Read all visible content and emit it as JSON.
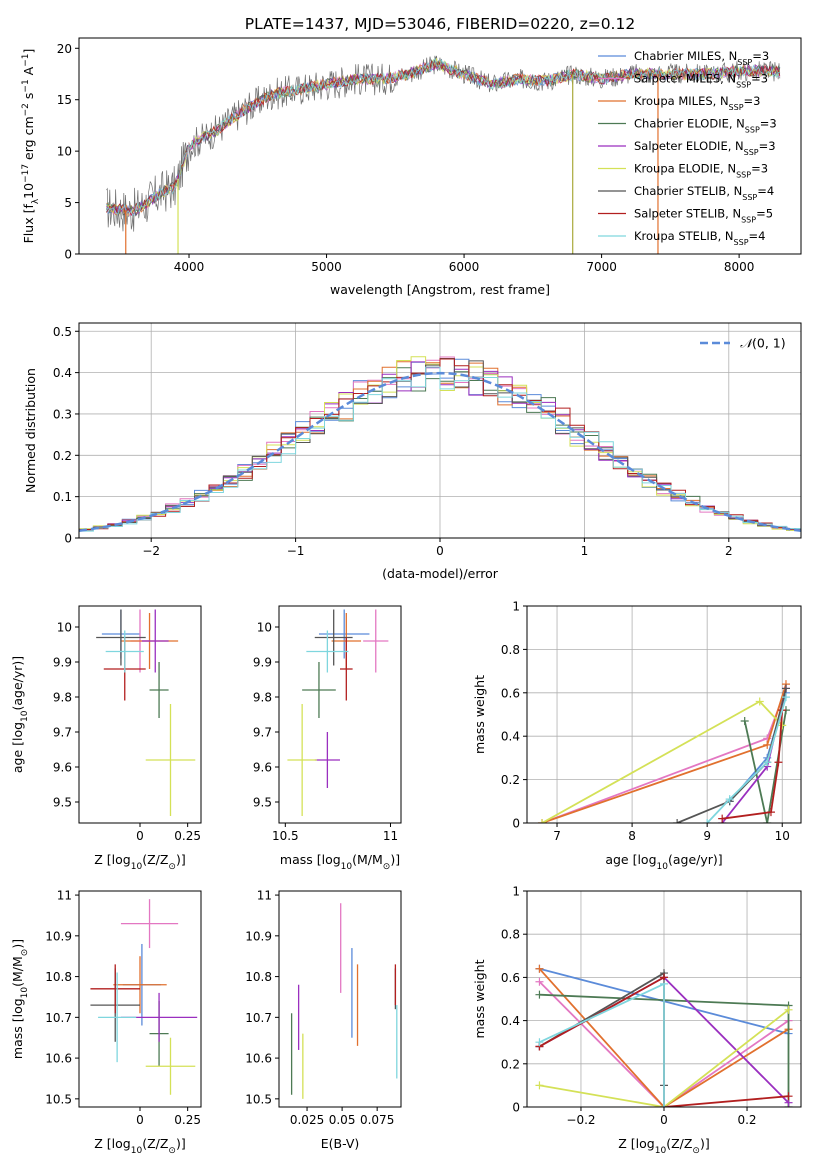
{
  "figure": {
    "title": "PLATE=1437, MJD=53046, FIBERID=0220, z=0.12",
    "model_colors": [
      "#5b8bd9",
      "#e377c2",
      "#e1702e",
      "#4d7a54",
      "#9a2fbf",
      "#d4e157",
      "#555555",
      "#b21f1f",
      "#7fd6de"
    ]
  },
  "chart_data": [
    {
      "id": "spectrum",
      "type": "line",
      "title": "PLATE=1437, MJD=53046, FIBERID=0220, z=0.12",
      "xlabel": "wavelength [Angstrom, rest frame]",
      "ylabel": "Flux [f_λ 10^-17 erg cm^-2 s^-1 A^-1]",
      "xlim": [
        3200,
        8450
      ],
      "ylim": [
        0,
        21
      ],
      "xticks": [
        4000,
        5000,
        6000,
        7000,
        8000
      ],
      "yticks": [
        0,
        5,
        10,
        15,
        20
      ],
      "legend_position": "top-right",
      "legend": [
        {
          "label": "Chabrier MILES, N",
          "sub": "SSP",
          "eq": "=3",
          "color": "#5b8bd9"
        },
        {
          "label": "Salpeter MILES, N",
          "sub": "SSP",
          "eq": "=3",
          "color": "#e377c2"
        },
        {
          "label": "Kroupa MILES, N",
          "sub": "SSP",
          "eq": "=3",
          "color": "#e1702e"
        },
        {
          "label": "Chabrier ELODIE, N",
          "sub": "SSP",
          "eq": "=3",
          "color": "#4d7a54"
        },
        {
          "label": "Salpeter ELODIE, N",
          "sub": "SSP",
          "eq": "=3",
          "color": "#9a2fbf"
        },
        {
          "label": "Kroupa ELODIE, N",
          "sub": "SSP",
          "eq": "=3",
          "color": "#d4e157"
        },
        {
          "label": "Chabrier STELIB, N",
          "sub": "SSP",
          "eq": "=4",
          "color": "#555555"
        },
        {
          "label": "Salpeter STELIB, N",
          "sub": "SSP",
          "eq": "=5",
          "color": "#b21f1f"
        },
        {
          "label": "Kroupa STELIB, N",
          "sub": "SSP",
          "eq": "=4",
          "color": "#7fd6de"
        }
      ],
      "continuum_x": [
        3400,
        3500,
        3600,
        3700,
        3800,
        3900,
        4000,
        4200,
        4400,
        4600,
        4800,
        5000,
        5200,
        5400,
        5600,
        5800,
        6000,
        6200,
        6400,
        6600,
        6800,
        7000,
        7200,
        7400,
        7600,
        7800,
        8000,
        8200,
        8300
      ],
      "continuum_y": [
        4.5,
        4.3,
        4.2,
        5.0,
        6.0,
        6.5,
        10.5,
        12.0,
        14.0,
        15.5,
        16.0,
        16.5,
        17.0,
        17.0,
        17.5,
        18.5,
        17.5,
        16.5,
        17.0,
        16.8,
        17.5,
        17.0,
        17.5,
        17.5,
        17.5,
        17.5,
        17.8,
        17.8,
        17.7
      ]
    },
    {
      "id": "residuals",
      "type": "line",
      "xlabel": "(data-model)/error",
      "ylabel": "Normed distribution",
      "xlim": [
        -2.5,
        2.5
      ],
      "ylim": [
        0,
        0.52
      ],
      "xticks": [
        -2,
        -1,
        0,
        1,
        2
      ],
      "yticks": [
        0.0,
        0.1,
        0.2,
        0.3,
        0.4,
        0.5
      ],
      "grid": true,
      "legend_position": "top-right",
      "series": [
        {
          "name": "N(0,1)",
          "type": "gaussian",
          "mean": 0,
          "sigma": 1,
          "color": "#5b8bd9"
        }
      ]
    },
    {
      "id": "age-vs-Z",
      "type": "scatter",
      "xlabel": "Z [log10(Z/Z_sun)]",
      "ylabel": "age [log10(age/yr)]",
      "xlim": [
        -0.32,
        0.32
      ],
      "ylim": [
        9.44,
        10.06
      ],
      "xticks": [
        0.0,
        0.25
      ],
      "yticks": [
        9.5,
        9.6,
        9.7,
        9.8,
        9.9,
        10.0
      ],
      "points": [
        {
          "x": -0.1,
          "y": 9.98,
          "xerr": 0.1,
          "yerr": 0.07
        },
        {
          "x": 0.0,
          "y": 9.96,
          "xerr": 0.05,
          "yerr": 0.09
        },
        {
          "x": 0.05,
          "y": 9.96,
          "xerr": 0.15,
          "yerr": 0.08
        },
        {
          "x": 0.1,
          "y": 9.82,
          "xerr": 0.05,
          "yerr": 0.08
        },
        {
          "x": 0.08,
          "y": 9.96,
          "xerr": 0.07,
          "yerr": 0.09
        },
        {
          "x": 0.16,
          "y": 9.62,
          "xerr": 0.13,
          "yerr": 0.16
        },
        {
          "x": -0.1,
          "y": 9.97,
          "xerr": 0.13,
          "yerr": 0.08
        },
        {
          "x": -0.08,
          "y": 9.88,
          "xerr": 0.11,
          "yerr": 0.09
        },
        {
          "x": -0.08,
          "y": 9.93,
          "xerr": 0.1,
          "yerr": 0.06
        }
      ]
    },
    {
      "id": "age-vs-mass",
      "type": "scatter",
      "xlabel": "mass [log10(M/M_sun)]",
      "ylabel": "",
      "xlim": [
        10.47,
        11.05
      ],
      "ylim": [
        9.44,
        10.06
      ],
      "xticks": [
        10.5,
        11.0
      ],
      "yticks": [
        9.5,
        9.6,
        9.7,
        9.8,
        9.9,
        10.0
      ],
      "points": [
        {
          "x": 10.78,
          "y": 9.98,
          "xerr": 0.12,
          "yerr": 0.07
        },
        {
          "x": 10.93,
          "y": 9.96,
          "xerr": 0.06,
          "yerr": 0.09
        },
        {
          "x": 10.79,
          "y": 9.96,
          "xerr": 0.07,
          "yerr": 0.08
        },
        {
          "x": 10.66,
          "y": 9.82,
          "xerr": 0.08,
          "yerr": 0.08
        },
        {
          "x": 10.7,
          "y": 9.62,
          "xerr": 0.06,
          "yerr": 0.08
        },
        {
          "x": 10.58,
          "y": 9.62,
          "xerr": 0.07,
          "yerr": 0.16
        },
        {
          "x": 10.73,
          "y": 9.97,
          "xerr": 0.09,
          "yerr": 0.08
        },
        {
          "x": 10.79,
          "y": 9.88,
          "xerr": 0.03,
          "yerr": 0.09
        },
        {
          "x": 10.7,
          "y": 9.93,
          "xerr": 0.1,
          "yerr": 0.06
        }
      ]
    },
    {
      "id": "weight-vs-age",
      "type": "line",
      "xlabel": "age [log10(age/yr)]",
      "ylabel": "mass weight",
      "xlim": [
        6.6,
        10.25
      ],
      "ylim": [
        0,
        1.0
      ],
      "xticks": [
        7,
        8,
        9,
        10
      ],
      "yticks": [
        0.0,
        0.2,
        0.4,
        0.6,
        0.8,
        1.0
      ],
      "grid": true,
      "series": [
        {
          "x": [
            9.3,
            9.8,
            10.05
          ],
          "y": [
            0.1,
            0.3,
            0.6
          ]
        },
        {
          "x": [
            6.8,
            9.8,
            10.05
          ],
          "y": [
            0.0,
            0.39,
            0.62
          ]
        },
        {
          "x": [
            6.8,
            9.8,
            10.05
          ],
          "y": [
            0.0,
            0.36,
            0.64
          ]
        },
        {
          "x": [
            9.5,
            9.8,
            10.05
          ],
          "y": [
            0.47,
            0.0,
            0.52
          ]
        },
        {
          "x": [
            9.2,
            9.8,
            10.05
          ],
          "y": [
            0.0,
            0.26,
            0.62
          ]
        },
        {
          "x": [
            6.8,
            9.7,
            10.0
          ],
          "y": [
            0.0,
            0.56,
            0.45
          ]
        },
        {
          "x": [
            8.6,
            9.3,
            9.8,
            10.05
          ],
          "y": [
            0.0,
            0.1,
            0.28,
            0.62
          ]
        },
        {
          "x": [
            9.2,
            9.85,
            9.95,
            10.0
          ],
          "y": [
            0.02,
            0.05,
            0.28,
            0.52
          ]
        },
        {
          "x": [
            9.0,
            9.3,
            9.8,
            10.05
          ],
          "y": [
            0.0,
            0.11,
            0.28,
            0.58
          ]
        }
      ]
    },
    {
      "id": "mass-vs-Z",
      "type": "scatter",
      "xlabel": "Z [log10(Z/Z_sun)]",
      "ylabel": "mass [log10(M/M_sun)]",
      "xlim": [
        -0.32,
        0.32
      ],
      "ylim": [
        10.48,
        11.01
      ],
      "xticks": [
        0.0,
        0.25
      ],
      "yticks": [
        10.5,
        10.6,
        10.7,
        10.8,
        10.9,
        11.0
      ],
      "points": [
        {
          "x": 0.01,
          "y": 10.78,
          "xerr": 0.1,
          "yerr": 0.1
        },
        {
          "x": 0.05,
          "y": 10.93,
          "xerr": 0.15,
          "yerr": 0.06
        },
        {
          "x": 0.0,
          "y": 10.78,
          "xerr": 0.14,
          "yerr": 0.07
        },
        {
          "x": 0.1,
          "y": 10.66,
          "xerr": 0.05,
          "yerr": 0.08
        },
        {
          "x": 0.1,
          "y": 10.7,
          "xerr": 0.2,
          "yerr": 0.06
        },
        {
          "x": 0.16,
          "y": 10.58,
          "xerr": 0.13,
          "yerr": 0.07
        },
        {
          "x": -0.13,
          "y": 10.73,
          "xerr": 0.13,
          "yerr": 0.09
        },
        {
          "x": -0.13,
          "y": 10.77,
          "xerr": 0.13,
          "yerr": 0.06
        },
        {
          "x": -0.12,
          "y": 10.7,
          "xerr": 0.1,
          "yerr": 0.11
        }
      ]
    },
    {
      "id": "mass-vs-EBV",
      "type": "scatter",
      "xlabel": "E(B-V)",
      "ylabel": "",
      "xlim": [
        0.005,
        0.092
      ],
      "ylim": [
        10.48,
        11.01
      ],
      "xticks": [
        0.025,
        0.05,
        0.075
      ],
      "yticks": [
        10.5,
        10.6,
        10.7,
        10.8,
        10.9,
        11.0
      ],
      "points": [
        {
          "x": 0.057,
          "y": 10.76,
          "xerr": 0,
          "yerr": 0.11
        },
        {
          "x": 0.049,
          "y": 10.87,
          "xerr": 0,
          "yerr": 0.11
        },
        {
          "x": 0.061,
          "y": 10.73,
          "xerr": 0,
          "yerr": 0.1
        },
        {
          "x": 0.014,
          "y": 10.61,
          "xerr": 0,
          "yerr": 0.1
        },
        {
          "x": 0.019,
          "y": 10.7,
          "xerr": 0,
          "yerr": 0.08
        },
        {
          "x": 0.022,
          "y": 10.58,
          "xerr": 0,
          "yerr": 0.08
        },
        {
          "x": 0.088,
          "y": 10.77,
          "xerr": 0,
          "yerr": 0.05
        },
        {
          "x": 0.088,
          "y": 10.78,
          "xerr": 0,
          "yerr": 0.05
        },
        {
          "x": 0.089,
          "y": 10.64,
          "xerr": 0,
          "yerr": 0.09
        }
      ]
    },
    {
      "id": "weight-vs-Z",
      "type": "line",
      "xlabel": "Z [log10(Z/Z_sun)]",
      "ylabel": "mass weight",
      "xlim": [
        -0.33,
        0.33
      ],
      "ylim": [
        0,
        1.0
      ],
      "xticks": [
        -0.2,
        0.0,
        0.2
      ],
      "yticks": [
        0.0,
        0.2,
        0.4,
        0.6,
        0.8,
        1.0
      ],
      "grid": true,
      "series": [
        {
          "x": [
            -0.3,
            0.3
          ],
          "y": [
            0.64,
            0.34
          ]
        },
        {
          "x": [
            -0.3,
            0.0,
            0.3
          ],
          "y": [
            0.58,
            0.0,
            0.4
          ]
        },
        {
          "x": [
            -0.3,
            0.0,
            0.3
          ],
          "y": [
            0.64,
            0.0,
            0.36
          ]
        },
        {
          "x": [
            -0.3,
            0.3,
            0.3
          ],
          "y": [
            0.52,
            0.47,
            0.0
          ]
        },
        {
          "x": [
            -0.3,
            0.0,
            0.3
          ],
          "y": [
            0.28,
            0.6,
            0.02
          ]
        },
        {
          "x": [
            -0.3,
            0.0,
            0.3
          ],
          "y": [
            0.1,
            0.0,
            0.45
          ]
        },
        {
          "x": [
            -0.3,
            0.0,
            0.0
          ],
          "y": [
            0.28,
            0.62,
            0.1
          ]
        },
        {
          "x": [
            -0.3,
            0.0,
            0.0,
            0.3
          ],
          "y": [
            0.28,
            0.6,
            0.0,
            0.05
          ]
        },
        {
          "x": [
            -0.3,
            0.0,
            0.0
          ],
          "y": [
            0.3,
            0.57,
            0.0
          ]
        }
      ]
    }
  ]
}
